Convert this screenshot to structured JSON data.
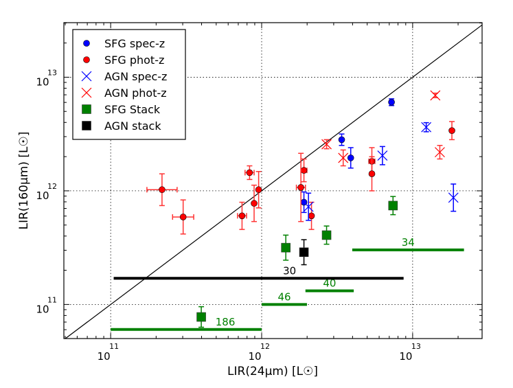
{
  "chart_data": {
    "type": "scatter",
    "scale": "log-log",
    "xlabel": "LIR(24μm) [L☉]",
    "ylabel": "LIR(160μm) [L☉]",
    "xlim_log10": [
      10.69,
      13.46
    ],
    "ylim_log10": [
      10.7,
      13.48
    ],
    "grid": true,
    "legend_position": "top-left",
    "one_to_one_line": true,
    "x_ticks": [
      {
        "base": "10",
        "exp": "11",
        "value": 11
      },
      {
        "base": "10",
        "exp": "12",
        "value": 12
      },
      {
        "base": "10",
        "exp": "13",
        "value": 13
      }
    ],
    "y_ticks": [
      {
        "base": "10",
        "exp": "11",
        "value": 11
      },
      {
        "base": "10",
        "exp": "12",
        "value": 12
      },
      {
        "base": "10",
        "exp": "13",
        "value": 13
      }
    ],
    "series": [
      {
        "name": "SFG spec-z",
        "marker": "circle",
        "color": "#0000ff",
        "points": [
          {
            "x": 12.86,
            "y": 12.78,
            "yerr": 0.03
          },
          {
            "x": 12.53,
            "y": 12.45,
            "yerr": 0.05
          },
          {
            "x": 12.59,
            "y": 12.29,
            "yerr": 0.09
          },
          {
            "x": 12.28,
            "y": 11.9,
            "yerr": 0.09
          }
        ]
      },
      {
        "name": "SFG phot-z",
        "marker": "circle",
        "color": "#ff0000",
        "points": [
          {
            "x": 13.26,
            "y": 12.53,
            "yerr": 0.08
          },
          {
            "x": 12.73,
            "y": 12.26,
            "yerr": 0.12,
            "xerr": 0.02
          },
          {
            "x": 12.73,
            "y": 12.15,
            "yerr": 0.15
          },
          {
            "x": 12.28,
            "y": 12.18,
            "yerr": 0.1,
            "xerr": 0.02
          },
          {
            "x": 12.26,
            "y": 12.03,
            "yerr": 0.3,
            "xerr": 0.03
          },
          {
            "x": 11.92,
            "y": 12.16,
            "yerr": 0.06,
            "xerr": 0.03
          },
          {
            "x": 11.98,
            "y": 12.01,
            "yerr": 0.16
          },
          {
            "x": 11.95,
            "y": 11.89,
            "yerr": 0.16
          },
          {
            "x": 11.87,
            "y": 11.78,
            "yerr": 0.12,
            "xerr": 0.03
          },
          {
            "x": 11.34,
            "y": 12.01,
            "yerr": 0.14,
            "xerr": 0.1
          },
          {
            "x": 11.48,
            "y": 11.77,
            "yerr": 0.15,
            "xerr": 0.07
          },
          {
            "x": 12.33,
            "y": 11.78,
            "yerr": 0.12
          }
        ]
      },
      {
        "name": "AGN spec-z",
        "marker": "x",
        "color": "#0000ff",
        "points": [
          {
            "x": 13.09,
            "y": 12.56,
            "yerr": 0.04
          },
          {
            "x": 12.8,
            "y": 12.31,
            "yerr": 0.08
          },
          {
            "x": 13.27,
            "y": 11.94,
            "yerr": 0.12
          },
          {
            "x": 12.31,
            "y": 11.86,
            "yerr": 0.12
          }
        ]
      },
      {
        "name": "AGN phot-z",
        "marker": "x",
        "color": "#ff0000",
        "points": [
          {
            "x": 13.15,
            "y": 12.84,
            "yerr": 0.02
          },
          {
            "x": 12.43,
            "y": 12.41,
            "yerr": 0.04
          },
          {
            "x": 12.54,
            "y": 12.29,
            "yerr": 0.07
          },
          {
            "x": 13.18,
            "y": 12.34,
            "yerr": 0.06
          }
        ]
      },
      {
        "name": "SFG Stack",
        "marker": "square",
        "color": "#008000",
        "points": [
          {
            "x": 11.6,
            "y": 10.89,
            "yerr": 0.09
          },
          {
            "x": 12.16,
            "y": 11.5,
            "yerr": 0.11
          },
          {
            "x": 12.43,
            "y": 11.61,
            "yerr": 0.08
          },
          {
            "x": 12.87,
            "y": 11.87,
            "yerr": 0.08
          }
        ]
      },
      {
        "name": "AGN stack",
        "marker": "square",
        "color": "#000000",
        "points": [
          {
            "x": 12.28,
            "y": 11.46,
            "yerr": 0.11
          }
        ]
      }
    ],
    "bins": [
      {
        "label": "186",
        "color": "#008000",
        "x_from": 11.0,
        "x_to": 12.0,
        "y": 10.78
      },
      {
        "label": "46",
        "color": "#008000",
        "x_from": 12.0,
        "x_to": 12.3,
        "y": 11.0
      },
      {
        "label": "40",
        "color": "#008000",
        "x_from": 12.29,
        "x_to": 12.61,
        "y": 11.12
      },
      {
        "label": "34",
        "color": "#008000",
        "x_from": 12.6,
        "x_to": 13.34,
        "y": 11.48
      },
      {
        "label": "30",
        "color": "#000000",
        "x_from": 11.02,
        "x_to": 12.94,
        "y": 11.23
      }
    ]
  }
}
